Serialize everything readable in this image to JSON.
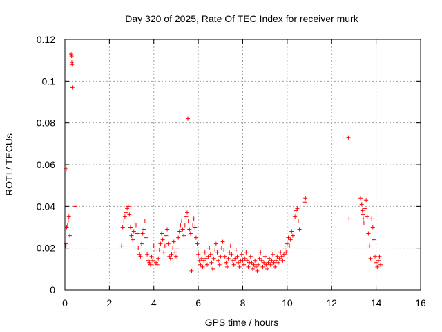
{
  "chart_data": {
    "type": "scatter",
    "title": "Day 320 of 2025, Rate Of TEC Index for receiver murk",
    "xlabel": "GPS time / hours",
    "ylabel": "ROTI / TECUs",
    "xlim": [
      0,
      16
    ],
    "ylim": [
      0,
      0.12
    ],
    "xticks": [
      0,
      2,
      4,
      6,
      8,
      10,
      12,
      14,
      16
    ],
    "xtick_labels": [
      "0",
      "2",
      "4",
      "6",
      "8",
      "10",
      "12",
      "14",
      "16"
    ],
    "yticks": [
      0,
      0.02,
      0.04,
      0.06,
      0.08,
      0.1,
      0.12
    ],
    "ytick_labels": [
      "0",
      "0.02",
      "0.04",
      "0.06",
      "0.08",
      "0.1",
      "0.12"
    ],
    "grid": true,
    "marker": "plus",
    "color": "#ff0000",
    "points": [
      [
        0.03,
        0.021
      ],
      [
        0.05,
        0.022
      ],
      [
        0.06,
        0.058
      ],
      [
        0.08,
        0.03
      ],
      [
        0.12,
        0.031
      ],
      [
        0.15,
        0.033
      ],
      [
        0.18,
        0.035
      ],
      [
        0.22,
        0.026
      ],
      [
        0.28,
        0.113
      ],
      [
        0.3,
        0.112
      ],
      [
        0.31,
        0.109
      ],
      [
        0.32,
        0.108
      ],
      [
        0.33,
        0.097
      ],
      [
        0.45,
        0.04
      ],
      [
        2.55,
        0.021
      ],
      [
        2.6,
        0.03
      ],
      [
        2.65,
        0.033
      ],
      [
        2.7,
        0.035
      ],
      [
        2.75,
        0.037
      ],
      [
        2.8,
        0.039
      ],
      [
        2.85,
        0.04
      ],
      [
        2.9,
        0.036
      ],
      [
        2.95,
        0.03
      ],
      [
        3.0,
        0.026
      ],
      [
        3.05,
        0.024
      ],
      [
        3.1,
        0.028
      ],
      [
        3.15,
        0.032
      ],
      [
        3.2,
        0.031
      ],
      [
        3.25,
        0.027
      ],
      [
        3.3,
        0.02
      ],
      [
        3.35,
        0.017
      ],
      [
        3.4,
        0.016
      ],
      [
        3.45,
        0.022
      ],
      [
        3.5,
        0.027
      ],
      [
        3.55,
        0.029
      ],
      [
        3.6,
        0.033
      ],
      [
        3.65,
        0.025
      ],
      [
        3.7,
        0.017
      ],
      [
        3.75,
        0.014
      ],
      [
        3.8,
        0.013
      ],
      [
        3.85,
        0.012
      ],
      [
        3.9,
        0.016
      ],
      [
        3.95,
        0.014
      ],
      [
        4.0,
        0.021
      ],
      [
        4.05,
        0.019
      ],
      [
        4.1,
        0.013
      ],
      [
        4.15,
        0.012
      ],
      [
        4.2,
        0.015
      ],
      [
        4.25,
        0.019
      ],
      [
        4.3,
        0.022
      ],
      [
        4.35,
        0.027
      ],
      [
        4.4,
        0.024
      ],
      [
        4.45,
        0.018
      ],
      [
        4.5,
        0.021
      ],
      [
        4.55,
        0.026
      ],
      [
        4.6,
        0.029
      ],
      [
        4.65,
        0.022
      ],
      [
        4.7,
        0.016
      ],
      [
        4.75,
        0.015
      ],
      [
        4.8,
        0.017
      ],
      [
        4.85,
        0.02
      ],
      [
        4.9,
        0.023
      ],
      [
        4.95,
        0.018
      ],
      [
        5.0,
        0.016
      ],
      [
        5.05,
        0.02
      ],
      [
        5.1,
        0.025
      ],
      [
        5.15,
        0.028
      ],
      [
        5.2,
        0.031
      ],
      [
        5.25,
        0.033
      ],
      [
        5.3,
        0.029
      ],
      [
        5.35,
        0.026
      ],
      [
        5.4,
        0.031
      ],
      [
        5.45,
        0.035
      ],
      [
        5.5,
        0.037
      ],
      [
        5.53,
        0.082
      ],
      [
        5.55,
        0.033
      ],
      [
        5.6,
        0.029
      ],
      [
        5.65,
        0.027
      ],
      [
        5.7,
        0.009
      ],
      [
        5.75,
        0.031
      ],
      [
        5.8,
        0.034
      ],
      [
        5.85,
        0.03
      ],
      [
        5.9,
        0.025
      ],
      [
        5.95,
        0.022
      ],
      [
        6.0,
        0.017
      ],
      [
        6.05,
        0.014
      ],
      [
        6.1,
        0.012
      ],
      [
        6.15,
        0.015
      ],
      [
        6.2,
        0.011
      ],
      [
        6.25,
        0.014
      ],
      [
        6.3,
        0.018
      ],
      [
        6.35,
        0.015
      ],
      [
        6.4,
        0.012
      ],
      [
        6.45,
        0.016
      ],
      [
        6.5,
        0.02
      ],
      [
        6.55,
        0.017
      ],
      [
        6.6,
        0.013
      ],
      [
        6.65,
        0.01
      ],
      [
        6.7,
        0.015
      ],
      [
        6.75,
        0.019
      ],
      [
        6.8,
        0.022
      ],
      [
        6.85,
        0.018
      ],
      [
        6.9,
        0.014
      ],
      [
        6.95,
        0.012
      ],
      [
        7.0,
        0.016
      ],
      [
        7.05,
        0.02
      ],
      [
        7.1,
        0.023
      ],
      [
        7.15,
        0.019
      ],
      [
        7.2,
        0.016
      ],
      [
        7.25,
        0.013
      ],
      [
        7.3,
        0.011
      ],
      [
        7.35,
        0.015
      ],
      [
        7.4,
        0.018
      ],
      [
        7.45,
        0.021
      ],
      [
        7.5,
        0.017
      ],
      [
        7.55,
        0.014
      ],
      [
        7.6,
        0.012
      ],
      [
        7.65,
        0.015
      ],
      [
        7.7,
        0.019
      ],
      [
        7.75,
        0.016
      ],
      [
        7.8,
        0.013
      ],
      [
        7.85,
        0.011
      ],
      [
        7.9,
        0.014
      ],
      [
        7.95,
        0.017
      ],
      [
        8.0,
        0.014
      ],
      [
        8.05,
        0.012
      ],
      [
        8.1,
        0.015
      ],
      [
        8.15,
        0.018
      ],
      [
        8.2,
        0.014
      ],
      [
        8.25,
        0.011
      ],
      [
        8.3,
        0.013
      ],
      [
        8.35,
        0.016
      ],
      [
        8.4,
        0.013
      ],
      [
        8.45,
        0.01
      ],
      [
        8.5,
        0.012
      ],
      [
        8.55,
        0.014
      ],
      [
        8.6,
        0.011
      ],
      [
        8.65,
        0.009
      ],
      [
        8.7,
        0.012
      ],
      [
        8.75,
        0.015
      ],
      [
        8.8,
        0.018
      ],
      [
        8.85,
        0.014
      ],
      [
        8.9,
        0.011
      ],
      [
        8.95,
        0.013
      ],
      [
        9.0,
        0.016
      ],
      [
        9.05,
        0.012
      ],
      [
        9.1,
        0.01
      ],
      [
        9.15,
        0.013
      ],
      [
        9.2,
        0.015
      ],
      [
        9.25,
        0.012
      ],
      [
        9.3,
        0.014
      ],
      [
        9.35,
        0.017
      ],
      [
        9.4,
        0.013
      ],
      [
        9.45,
        0.011
      ],
      [
        9.5,
        0.014
      ],
      [
        9.55,
        0.016
      ],
      [
        9.6,
        0.013
      ],
      [
        9.65,
        0.015
      ],
      [
        9.7,
        0.018
      ],
      [
        9.75,
        0.016
      ],
      [
        9.8,
        0.014
      ],
      [
        9.85,
        0.017
      ],
      [
        9.9,
        0.02
      ],
      [
        9.95,
        0.018
      ],
      [
        10.0,
        0.022
      ],
      [
        10.05,
        0.025
      ],
      [
        10.1,
        0.021
      ],
      [
        10.15,
        0.024
      ],
      [
        10.2,
        0.028
      ],
      [
        10.25,
        0.026
      ],
      [
        10.3,
        0.031
      ],
      [
        10.35,
        0.035
      ],
      [
        10.4,
        0.038
      ],
      [
        10.45,
        0.039
      ],
      [
        10.5,
        0.033
      ],
      [
        10.55,
        0.029
      ],
      [
        10.8,
        0.042
      ],
      [
        10.82,
        0.044
      ],
      [
        12.75,
        0.073
      ],
      [
        12.78,
        0.034
      ],
      [
        13.3,
        0.044
      ],
      [
        13.35,
        0.041
      ],
      [
        13.38,
        0.038
      ],
      [
        13.4,
        0.036
      ],
      [
        13.42,
        0.034
      ],
      [
        13.45,
        0.032
      ],
      [
        13.5,
        0.039
      ],
      [
        13.55,
        0.043
      ],
      [
        13.6,
        0.035
      ],
      [
        13.65,
        0.027
      ],
      [
        13.7,
        0.021
      ],
      [
        13.75,
        0.015
      ],
      [
        13.8,
        0.034
      ],
      [
        13.85,
        0.03
      ],
      [
        13.9,
        0.024
      ],
      [
        13.95,
        0.016
      ],
      [
        14.0,
        0.013
      ],
      [
        14.05,
        0.011
      ],
      [
        14.1,
        0.014
      ],
      [
        14.15,
        0.016
      ],
      [
        14.2,
        0.012
      ]
    ]
  }
}
